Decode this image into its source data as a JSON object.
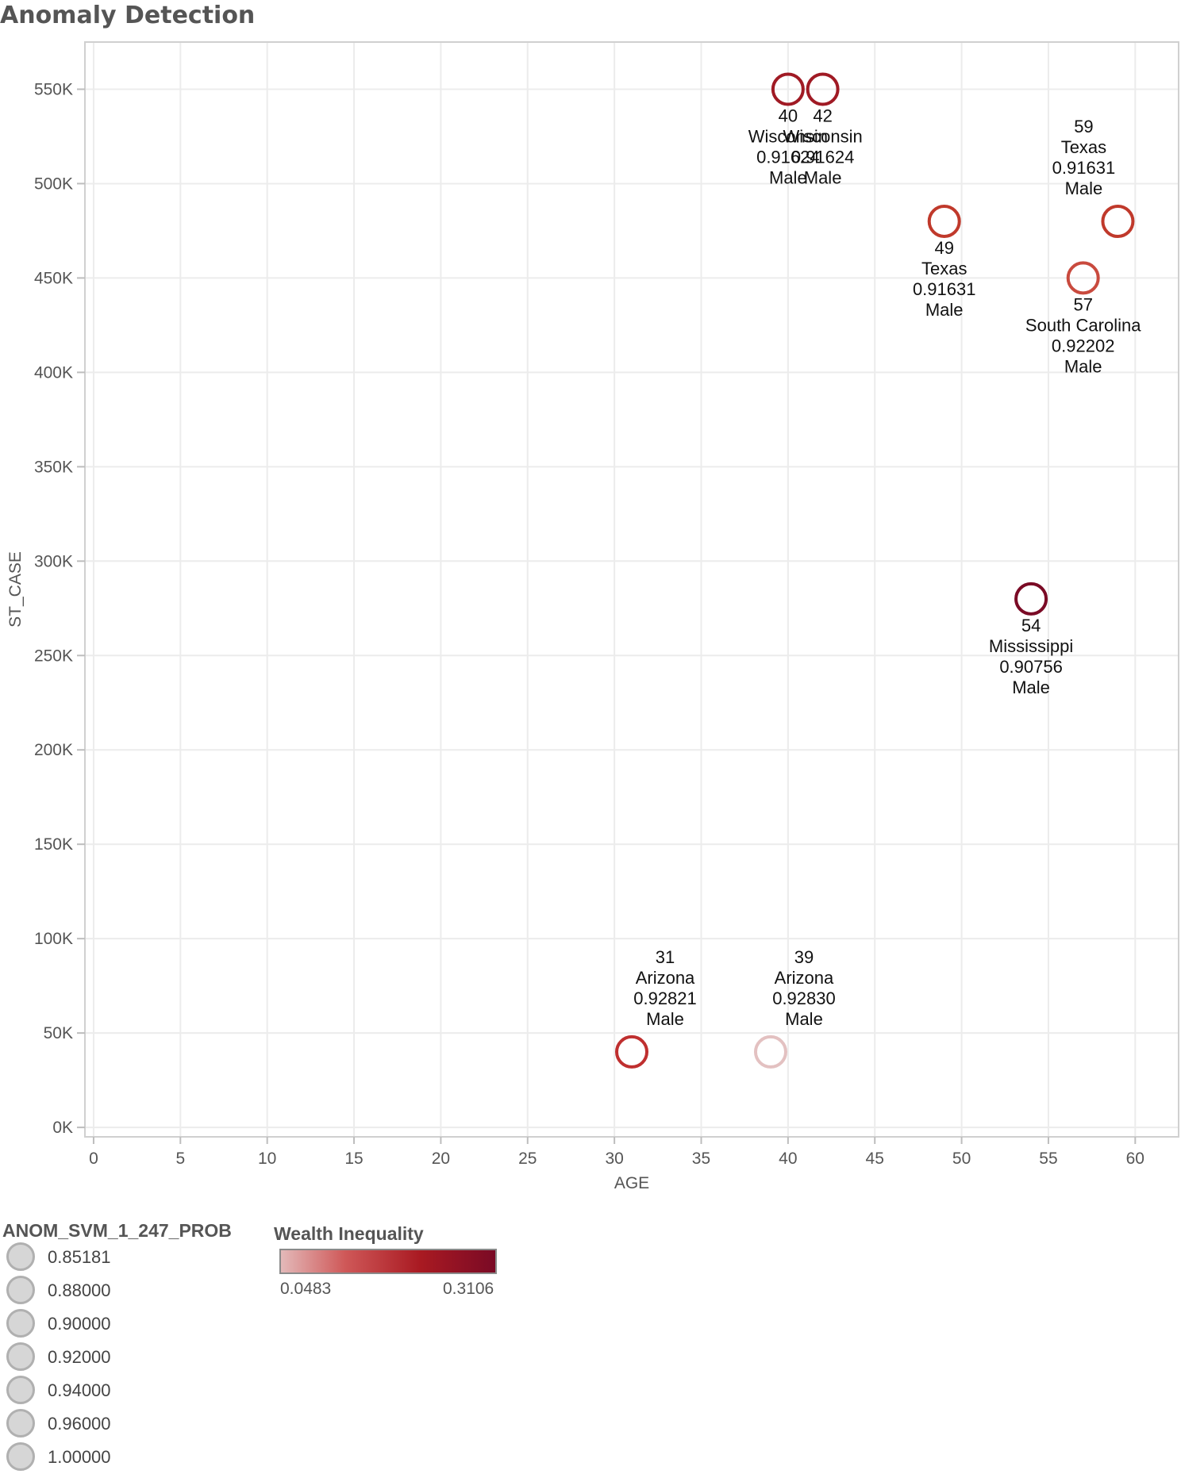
{
  "chart_data": {
    "type": "scatter",
    "title": "Anomaly Detection",
    "xlabel": "AGE",
    "ylabel": "ST_CASE",
    "xlim": [
      -0.5,
      62.5
    ],
    "ylim": [
      -5000,
      575000
    ],
    "x_ticks": [
      0,
      5,
      10,
      15,
      20,
      25,
      30,
      35,
      40,
      45,
      50,
      55,
      60
    ],
    "y_ticks": [
      0,
      50000,
      100000,
      150000,
      200000,
      250000,
      300000,
      350000,
      400000,
      450000,
      500000,
      550000
    ],
    "y_tick_labels": [
      "0K",
      "50K",
      "100K",
      "150K",
      "200K",
      "250K",
      "300K",
      "350K",
      "400K",
      "450K",
      "500K",
      "550K"
    ],
    "grid": true,
    "points": [
      {
        "x": 40,
        "y": 550000,
        "age": "40",
        "state": "Wisconsin",
        "prob": "0.91624",
        "sex": "Male",
        "color": "#a01a24",
        "label_pos": "below"
      },
      {
        "x": 42,
        "y": 550000,
        "age": "42",
        "state": "Wisconsin",
        "prob": "0.91624",
        "sex": "Male",
        "color": "#a01a24",
        "label_pos": "below"
      },
      {
        "x": 49,
        "y": 480000,
        "age": "49",
        "state": "Texas",
        "prob": "0.91631",
        "sex": "Male",
        "color": "#c0392b",
        "label_pos": "below"
      },
      {
        "x": 59,
        "y": 480000,
        "age": "59",
        "state": "Texas",
        "prob": "0.91631",
        "sex": "Male",
        "color": "#c0392b",
        "label_pos": "above-left"
      },
      {
        "x": 57,
        "y": 450000,
        "age": "57",
        "state": "South Carolina",
        "prob": "0.92202",
        "sex": "Male",
        "color": "#c94a3e",
        "label_pos": "below"
      },
      {
        "x": 54,
        "y": 280000,
        "age": "54",
        "state": "Mississippi",
        "prob": "0.90756",
        "sex": "Male",
        "color": "#7a0a25",
        "label_pos": "below"
      },
      {
        "x": 31,
        "y": 40000,
        "age": "31",
        "state": "Arizona",
        "prob": "0.92821",
        "sex": "Male",
        "color": "#bf2f2f",
        "label_pos": "above"
      },
      {
        "x": 39,
        "y": 40000,
        "age": "39",
        "state": "Arizona",
        "prob": "0.92830",
        "sex": "Male",
        "color": "#e3c1c1",
        "label_pos": "above"
      }
    ]
  },
  "size_legend": {
    "title": "ANOM_SVM_1_247_PROB",
    "items": [
      "0.85181",
      "0.88000",
      "0.90000",
      "0.92000",
      "0.94000",
      "0.96000",
      "1.00000"
    ]
  },
  "color_legend": {
    "title": "Wealth Inequality",
    "min": "0.0483",
    "max": "0.3106"
  }
}
